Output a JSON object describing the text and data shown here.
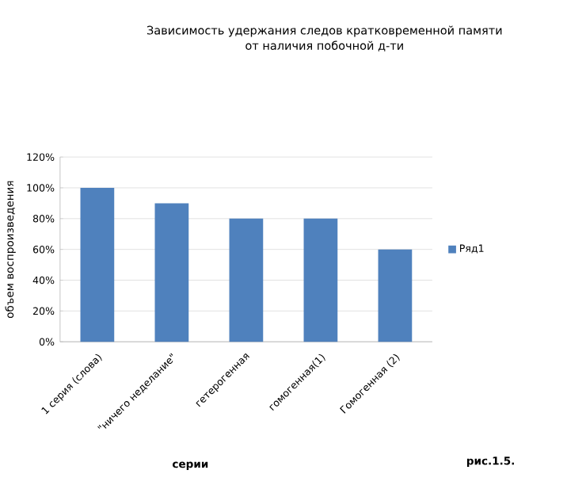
{
  "chart_data": {
    "type": "bar",
    "title": "Зависимость удержания  следов кратковременной памяти\nот наличия побочной д-ти",
    "categories": [
      "1 серия (слова)",
      "\"ничего неделание\"",
      "гетерогенная",
      "гомогенная(1)",
      "Гомогенная (2)"
    ],
    "series": [
      {
        "name": "Ряд1",
        "color": "#4f81bd",
        "values": [
          100,
          90,
          80,
          80,
          60
        ]
      }
    ],
    "xlabel": "серии",
    "ylabel": "объем воспроизведения",
    "ylim": [
      0,
      120
    ],
    "yticks": [
      {
        "value": 0,
        "label": "0%"
      },
      {
        "value": 20,
        "label": "20%"
      },
      {
        "value": 40,
        "label": "40%"
      },
      {
        "value": 60,
        "label": "60%"
      },
      {
        "value": 80,
        "label": "80%"
      },
      {
        "value": 100,
        "label": "100%"
      },
      {
        "value": 120,
        "label": "120%"
      }
    ],
    "grid": "y",
    "legend": "right",
    "annotations": [
      "рис.1.5."
    ]
  }
}
